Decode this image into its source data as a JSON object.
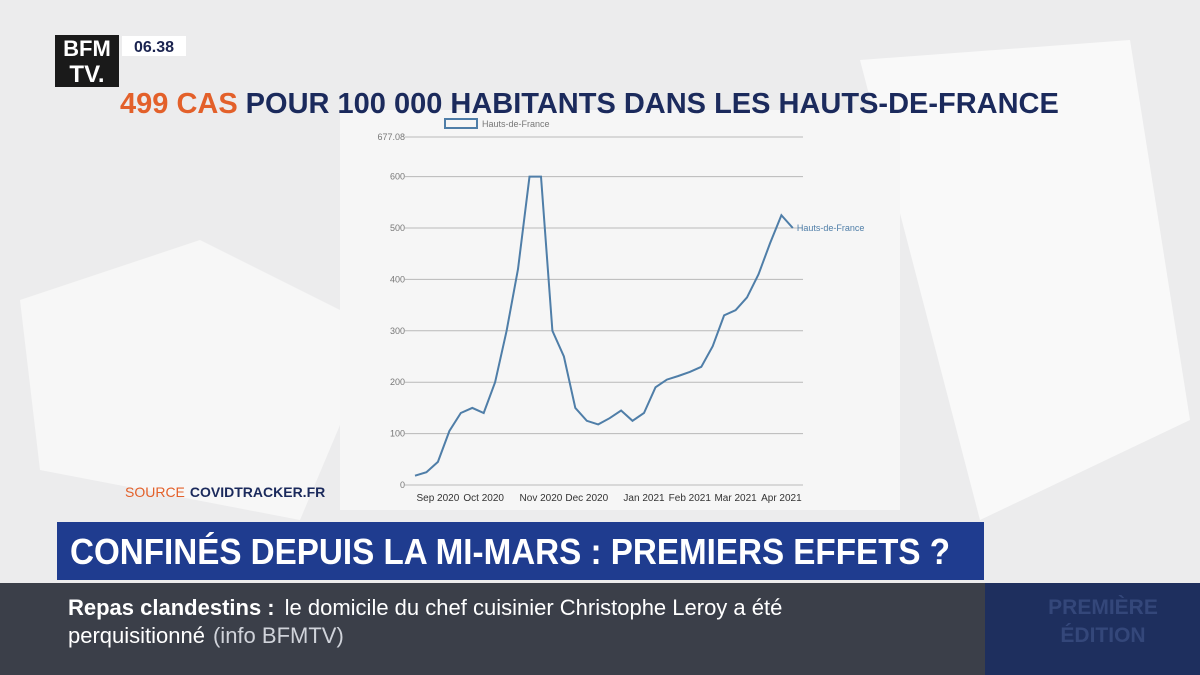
{
  "broadcast": {
    "logo_top": "BFM",
    "logo_bottom": "TV.",
    "time": "06.38",
    "headline_highlight": "499 CAS",
    "headline_rest": "POUR 100 000 HABITANTS DANS LES HAUTS-DE-FRANCE",
    "source_label": "SOURCE",
    "source_name": "COVIDTRACKER.FR",
    "banner": "CONFINÉS DEPUIS LA MI-MARS : PREMIERS EFFETS ?",
    "ticker_lead": "Repas clandestins :",
    "ticker_lines": [
      "le domicile du chef cuisinier Christophe Leroy a été",
      "perquisitionné"
    ],
    "ticker_credit": "(info BFMTV)",
    "show_lines": [
      "PREMIÈRE",
      "ÉDITION"
    ]
  },
  "chart_data": {
    "type": "line",
    "categories": [
      null,
      null,
      "Sep 2020",
      null,
      null,
      null,
      "Oct 2020",
      null,
      null,
      null,
      null,
      "Nov 2020",
      null,
      null,
      null,
      "Dec 2020",
      null,
      null,
      null,
      null,
      "Jan 2021",
      null,
      null,
      null,
      "Feb 2021",
      null,
      null,
      null,
      "Mar 2021",
      null,
      null,
      null,
      "Apr 2021",
      null
    ],
    "series": [
      {
        "name": "Hauts-de-France",
        "color": "#4f7ea8",
        "values": [
          18,
          25,
          45,
          105,
          140,
          150,
          140,
          200,
          300,
          420,
          600,
          600,
          300,
          250,
          150,
          125,
          118,
          130,
          145,
          125,
          140,
          190,
          205,
          212,
          220,
          230,
          270,
          330,
          340,
          365,
          410,
          470,
          525,
          500
        ]
      }
    ],
    "ylim": [
      0,
      677.08
    ],
    "yticks": [
      0,
      100,
      200,
      300,
      400,
      500,
      600,
      677.08
    ],
    "grid": true
  }
}
